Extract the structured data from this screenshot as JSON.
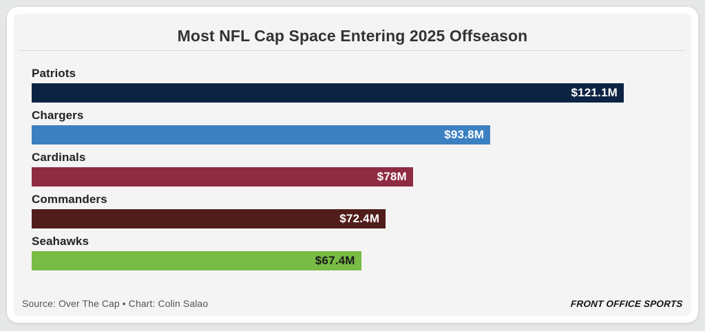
{
  "header": {
    "title": "Most NFL Cap Space Entering 2025 Offseason"
  },
  "chart_data": {
    "type": "bar",
    "orientation": "horizontal",
    "title": "Most NFL Cap Space Entering 2025 Offseason",
    "categories": [
      "Patriots",
      "Chargers",
      "Cardinals",
      "Commanders",
      "Seahawks"
    ],
    "values": [
      121.1,
      93.8,
      78,
      72.4,
      67.4
    ],
    "value_labels": [
      "$121.1M",
      "$93.8M",
      "$78M",
      "$72.4M",
      "$67.4M"
    ],
    "unit": "millions USD",
    "xlim": [
      0,
      121.1
    ],
    "grid": false,
    "legend": false,
    "bar_colors": [
      "#0d2342",
      "#3c80c2",
      "#8f2b43",
      "#511d1b",
      "#79bc45"
    ],
    "value_label_colors": [
      "#ffffff",
      "#ffffff",
      "#ffffff",
      "#ffffff",
      "#1a1a1a"
    ]
  },
  "footer": {
    "source": "Source: Over The Cap • Chart: Colin Salao",
    "brand": "FRONT OFFICE SPORTS"
  },
  "theme": {
    "page_background": "#e6e8e8",
    "card_background": "#ffffff",
    "panel_background": "#f4f4f4",
    "title_color": "#333333",
    "label_color": "#222222",
    "divider_color": "#d9d9d9",
    "source_color": "#545454"
  }
}
